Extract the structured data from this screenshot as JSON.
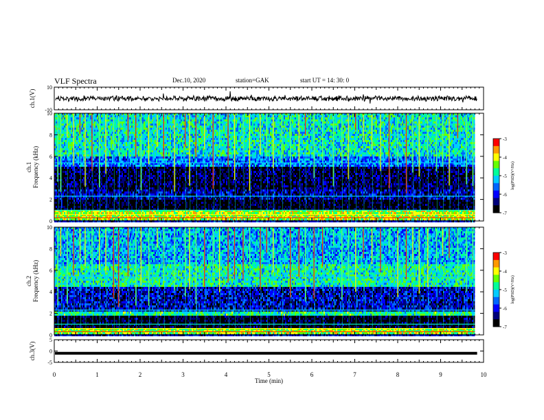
{
  "header": {
    "title": "VLF Spectra",
    "date": "Dec.10, 2020",
    "station": "station=GAK",
    "start": "start  UT =   14: 30: 0"
  },
  "chart_data": [
    {
      "type": "line",
      "panel": "ch1-waveform",
      "ylabel": "ch.1(V)",
      "ylim": [
        -10,
        10
      ],
      "yticks": [
        "10",
        "-10"
      ],
      "xlim": [
        0,
        10
      ],
      "baseline_value": 0,
      "notes": "Noisy waveform near 0 V with occasional spikes"
    },
    {
      "type": "heatmap",
      "panel": "ch1-spectrogram",
      "ylabel": "ch.1\nFrequency (kHz)",
      "ylim": [
        0,
        10
      ],
      "yticks": [
        "0",
        "2",
        "4",
        "6",
        "8",
        "10"
      ],
      "xlim": [
        0,
        10
      ],
      "colorbar": {
        "label": "log(PSD)(V²/Hz)",
        "range": [
          -7,
          -3
        ],
        "ticks": [
          "-3",
          "-4",
          "-5",
          "-6",
          "-7"
        ]
      },
      "bands": [
        {
          "f_low": 0,
          "f_high": 1.0,
          "level": -4.2
        },
        {
          "f_low": 1.0,
          "f_high": 2.0,
          "level": -6.8
        },
        {
          "f_low": 2.0,
          "f_high": 3.0,
          "level": -6.3
        },
        {
          "f_low": 3.0,
          "f_high": 5.0,
          "level": -6.6
        },
        {
          "f_low": 5.0,
          "f_high": 6.0,
          "level": -5.6
        },
        {
          "f_low": 6.0,
          "f_high": 10.0,
          "level": -5.0
        }
      ],
      "data_end_min": 9.8
    },
    {
      "type": "heatmap",
      "panel": "ch2-spectrogram",
      "ylabel": "ch.2\nFrequency (kHz)",
      "ylim": [
        0,
        10
      ],
      "yticks": [
        "0",
        "2",
        "4",
        "6",
        "8",
        "10"
      ],
      "xlim": [
        0,
        10
      ],
      "colorbar": {
        "label": "log(PSD)(V²/Hz)",
        "range": [
          -7,
          -3
        ],
        "ticks": [
          "-3",
          "-4",
          "-5",
          "-6",
          "-7"
        ]
      },
      "bands": [
        {
          "f_low": 0,
          "f_high": 0.6,
          "level": -4.3
        },
        {
          "f_low": 0.6,
          "f_high": 1.8,
          "level": -6.8
        },
        {
          "f_low": 1.8,
          "f_high": 2.2,
          "level": -4.8
        },
        {
          "f_low": 2.2,
          "f_high": 4.5,
          "level": -6.2
        },
        {
          "f_low": 4.5,
          "f_high": 6.5,
          "level": -4.9
        },
        {
          "f_low": 6.5,
          "f_high": 10.0,
          "level": -5.3
        }
      ],
      "data_end_min": 9.8
    },
    {
      "type": "line",
      "panel": "ch3-waveform",
      "ylabel": "ch.3(V)",
      "ylim": [
        -5,
        5
      ],
      "yticks": [
        "5",
        "0",
        "-5"
      ],
      "xlim": [
        0,
        10
      ],
      "baseline_value": -1,
      "xlabel": "Time  (min)",
      "xticks": [
        "0",
        "1",
        "2",
        "3",
        "4",
        "5",
        "6",
        "7",
        "8",
        "9",
        "10"
      ]
    }
  ],
  "palette": [
    "#000000",
    "#00007a",
    "#0000ff",
    "#0066ff",
    "#00ccff",
    "#00ff99",
    "#66ff00",
    "#ffff00",
    "#ff9900",
    "#ff0000"
  ],
  "sferic_times_min": [
    0.08,
    0.15,
    0.3,
    0.45,
    0.6,
    0.72,
    0.88,
    1.05,
    1.2,
    1.38,
    1.5,
    1.72,
    1.9,
    2.02,
    2.2,
    2.4,
    2.55,
    2.8,
    3.05,
    3.15,
    3.3,
    3.5,
    3.7,
    3.85,
    4.05,
    4.2,
    4.4,
    4.55,
    4.8,
    4.95,
    5.1,
    5.3,
    5.5,
    5.7,
    5.85,
    6.05,
    6.25,
    6.5,
    6.7,
    6.85,
    7.02,
    7.2,
    7.4,
    7.6,
    7.8,
    8.0,
    8.2,
    8.35,
    8.5,
    8.7,
    8.9,
    9.05,
    9.2,
    9.4,
    9.6,
    9.75
  ]
}
